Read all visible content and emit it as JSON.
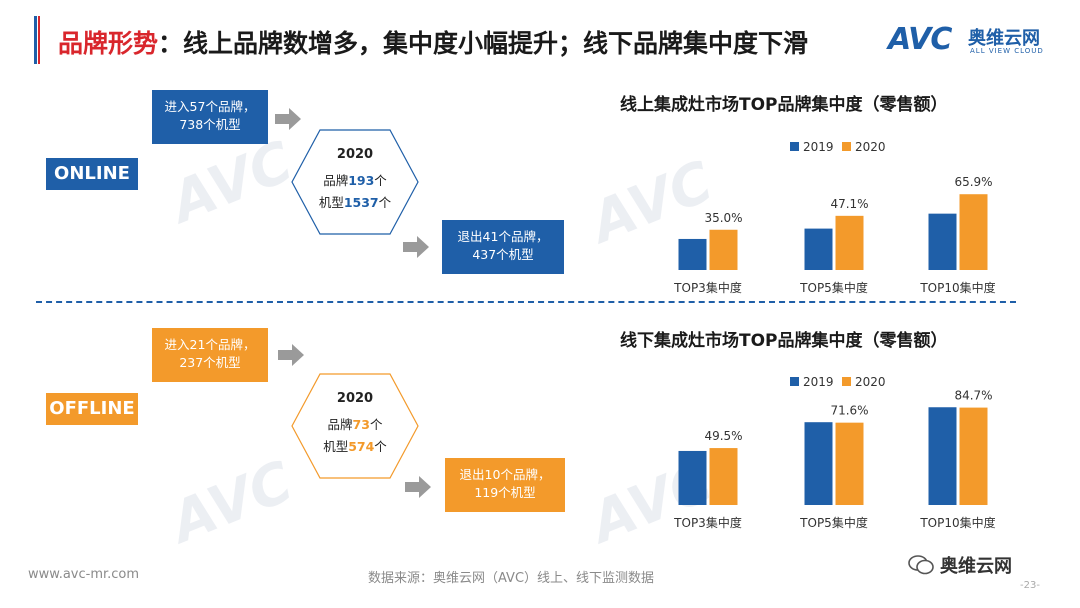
{
  "header": {
    "title_lead": "品牌形势",
    "title_rest": "：线上品牌数增多，集中度小幅提升；线下品牌集中度下滑",
    "logo_text": "AVC",
    "logo_cn": "奥维云网",
    "logo_en": "ALL VIEW CLOUD"
  },
  "online": {
    "badge": "ONLINE",
    "enter_line1": "进入57个品牌，",
    "enter_line2": "738个机型",
    "year": "2020",
    "brands_prefix": "品牌",
    "brands_value": "193",
    "brands_suffix": "个",
    "models_prefix": "机型",
    "models_value": "1537",
    "models_suffix": "个",
    "exit_line1": "退出41个品牌，",
    "exit_line2": "437个机型"
  },
  "offline": {
    "badge": "OFFLINE",
    "enter_line1": "进入21个品牌，",
    "enter_line2": "237个机型",
    "year": "2020",
    "brands_prefix": "品牌",
    "brands_value": "73",
    "brands_suffix": "个",
    "models_prefix": "机型",
    "models_value": "574",
    "models_suffix": "个",
    "exit_line1": "退出10个品牌，",
    "exit_line2": "119个机型"
  },
  "colors": {
    "blue": "#1f5fa8",
    "orange": "#f39a2b",
    "red": "#d9262c"
  },
  "chart_data": [
    {
      "type": "bar",
      "title": "线上集成灶市场TOP品牌集中度（零售额）",
      "categories": [
        "TOP3集中度",
        "TOP5集中度",
        "TOP10集中度"
      ],
      "series": [
        {
          "name": "2019",
          "values": [
            null,
            null,
            null
          ]
        },
        {
          "name": "2020",
          "values": [
            35.0,
            47.1,
            65.9
          ]
        }
      ],
      "data_labels": [
        "35.0%",
        "47.1%",
        "65.9%"
      ],
      "ylim": [
        0,
        100
      ],
      "unit": "%"
    },
    {
      "type": "bar",
      "title": "线下集成灶市场TOP品牌集中度（零售额）",
      "categories": [
        "TOP3集中度",
        "TOP5集中度",
        "TOP10集中度"
      ],
      "series": [
        {
          "name": "2019",
          "values": [
            null,
            null,
            null
          ]
        },
        {
          "name": "2020",
          "values": [
            49.5,
            71.6,
            84.7
          ]
        }
      ],
      "data_labels": [
        "49.5%",
        "71.6%",
        "84.7%"
      ],
      "ylim": [
        0,
        100
      ],
      "unit": "%"
    }
  ],
  "footer": {
    "url": "www.avc-mr.com",
    "source": "数据来源：奥维云网（AVC）线上、线下监测数据",
    "wechat": "奥维云网",
    "page": "-23-"
  }
}
